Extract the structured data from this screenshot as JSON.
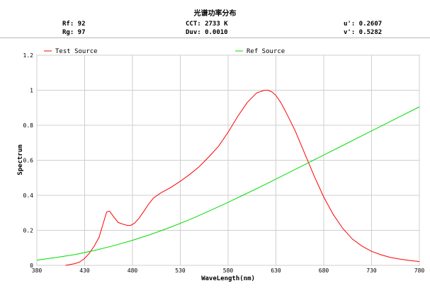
{
  "header": {
    "title": "光谱功率分布",
    "rf": "Rf: 92",
    "rg": "Rg: 97",
    "cct": "CCT: 2733 K",
    "duv": "Duv: 0.0010",
    "u_prime": "u': 0.2607",
    "v_prime": "v': 0.5282"
  },
  "chart_data": {
    "type": "line",
    "xlabel": "WaveLength(nm)",
    "ylabel": "Spectrum",
    "xlim": [
      380,
      780
    ],
    "ylim": [
      0,
      1.2
    ],
    "xticks": [
      "380",
      "430",
      "480",
      "530",
      "580",
      "630",
      "680",
      "730",
      "780"
    ],
    "yticks": [
      "0",
      "0.2",
      "0.4",
      "0.6",
      "0.8",
      "1",
      "1.2"
    ],
    "grid": true,
    "legend_position": "top",
    "series": [
      {
        "name": "Test Source",
        "color": "#ff0000",
        "x": [
          380,
          410,
          415,
          420,
          425,
          430,
          435,
          440,
          445,
          450,
          453,
          456,
          460,
          465,
          470,
          475,
          478,
          482,
          487,
          492,
          497,
          502,
          510,
          520,
          530,
          540,
          550,
          560,
          570,
          580,
          590,
          600,
          610,
          618,
          622,
          626,
          630,
          635,
          640,
          650,
          660,
          670,
          680,
          690,
          700,
          710,
          720,
          730,
          740,
          750,
          760,
          770,
          780
        ],
        "y": [
          null,
          0.0,
          0.005,
          0.01,
          0.02,
          0.04,
          0.07,
          0.11,
          0.16,
          0.25,
          0.305,
          0.31,
          0.28,
          0.245,
          0.235,
          0.228,
          0.228,
          0.24,
          0.27,
          0.31,
          0.35,
          0.385,
          0.415,
          0.445,
          0.48,
          0.52,
          0.565,
          0.62,
          0.68,
          0.76,
          0.85,
          0.93,
          0.985,
          1.0,
          1.0,
          0.99,
          0.97,
          0.93,
          0.88,
          0.77,
          0.64,
          0.51,
          0.39,
          0.29,
          0.21,
          0.15,
          0.11,
          0.08,
          0.06,
          0.045,
          0.035,
          0.028,
          0.022
        ]
      },
      {
        "name": "Ref Source",
        "color": "#00dd00",
        "x": [
          380,
          400,
          420,
          440,
          460,
          480,
          500,
          520,
          540,
          560,
          580,
          600,
          620,
          640,
          660,
          680,
          700,
          720,
          740,
          760,
          780
        ],
        "y": [
          0.03,
          0.045,
          0.062,
          0.085,
          0.112,
          0.143,
          0.178,
          0.218,
          0.262,
          0.31,
          0.36,
          0.412,
          0.465,
          0.52,
          0.575,
          0.63,
          0.685,
          0.74,
          0.795,
          0.85,
          0.905
        ]
      }
    ]
  }
}
